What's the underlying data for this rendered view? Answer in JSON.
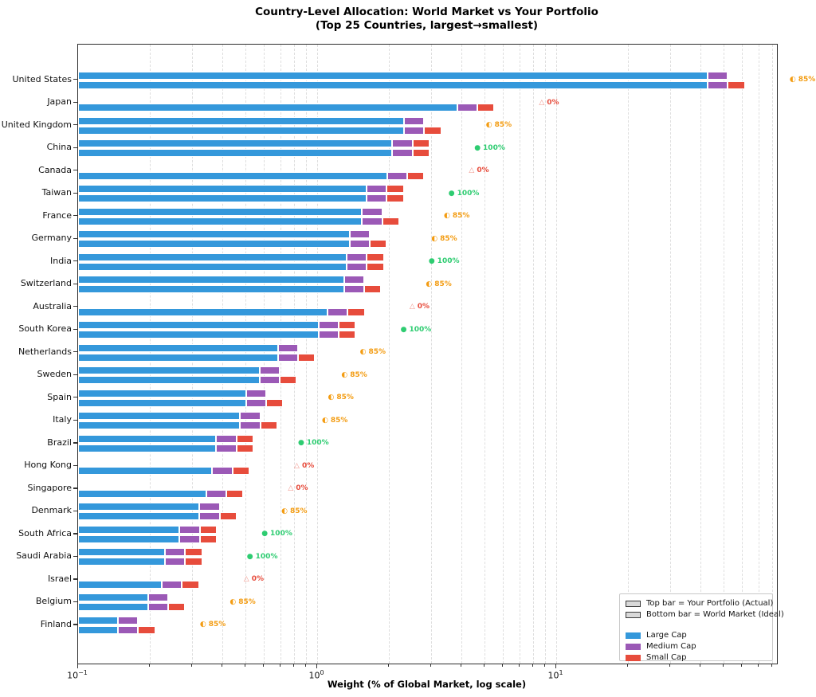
{
  "title": {
    "line1": "Country-Level Allocation: World Market vs Your Portfolio",
    "line2": "(Top 25 Countries, largest→smallest)"
  },
  "axes": {
    "xlabel": "Weight (% of Global Market, log scale)",
    "scale": "log",
    "x_min": 0.1,
    "x_max": 83.8,
    "x_ticks": [
      {
        "base": "10",
        "exp": "−1",
        "value": 0.1
      },
      {
        "base": "10",
        "exp": "0",
        "value": 1
      },
      {
        "base": "10",
        "exp": "1",
        "value": 10
      }
    ],
    "grid": "on"
  },
  "legend": {
    "position": "lower right",
    "bar_meaning": [
      "Top bar = Your Portfolio (Actual)",
      "Bottom bar = World Market (Ideal)"
    ],
    "caps": [
      {
        "label": "Large Cap",
        "color": "#3498db"
      },
      {
        "label": "Medium Cap",
        "color": "#9b59b6"
      },
      {
        "label": "Small Cap",
        "color": "#e74c3c"
      }
    ]
  },
  "chart_data": {
    "type": "bar",
    "subtype": "horizontal-paired-stacked",
    "title": "Country-Level Allocation: World Market vs Your Portfolio (Top 25 Countries, largest→smallest)",
    "xlabel": "Weight (% of Global Market, log scale)",
    "x_scale": "log",
    "xlim": [
      0.1,
      83.8
    ],
    "segments": [
      "Large Cap",
      "Medium Cap",
      "Small Cap"
    ],
    "segment_colors": [
      "#3498db",
      "#9b59b6",
      "#e74c3c"
    ],
    "cap_split_of_total": {
      "large": 0.7,
      "medium": 0.15,
      "small": 0.15
    },
    "series": [
      {
        "name": "Your Portfolio (Actual)",
        "position": "top"
      },
      {
        "name": "World Market (Ideal)",
        "position": "bottom"
      }
    ],
    "coverage_markers": {
      "85": {
        "glyph": "◐",
        "color": "#f39c12",
        "glyph_color": "#f39c12",
        "label": "85%"
      },
      "100": {
        "glyph": "●",
        "color": "#2ecc71",
        "glyph_color": "#2ecc71",
        "label": "100%"
      },
      "0": {
        "glyph": "△",
        "color": "#e74c3c",
        "glyph_color": "#f1948a",
        "label": "0%"
      }
    },
    "countries": [
      {
        "name": "United States",
        "market_weight_pct": 61.5,
        "portfolio_coverage_pct": 85
      },
      {
        "name": "Japan",
        "market_weight_pct": 5.5,
        "portfolio_coverage_pct": 0
      },
      {
        "name": "United Kingdom",
        "market_weight_pct": 3.3,
        "portfolio_coverage_pct": 85
      },
      {
        "name": "China",
        "market_weight_pct": 2.95,
        "portfolio_coverage_pct": 100
      },
      {
        "name": "Canada",
        "market_weight_pct": 2.8,
        "portfolio_coverage_pct": 0
      },
      {
        "name": "Taiwan",
        "market_weight_pct": 2.3,
        "portfolio_coverage_pct": 100
      },
      {
        "name": "France",
        "market_weight_pct": 2.2,
        "portfolio_coverage_pct": 85
      },
      {
        "name": "Germany",
        "market_weight_pct": 1.95,
        "portfolio_coverage_pct": 85
      },
      {
        "name": "India",
        "market_weight_pct": 1.9,
        "portfolio_coverage_pct": 100
      },
      {
        "name": "Switzerland",
        "market_weight_pct": 1.85,
        "portfolio_coverage_pct": 85
      },
      {
        "name": "Australia",
        "market_weight_pct": 1.58,
        "portfolio_coverage_pct": 0
      },
      {
        "name": "South Korea",
        "market_weight_pct": 1.45,
        "portfolio_coverage_pct": 100
      },
      {
        "name": "Netherlands",
        "market_weight_pct": 0.98,
        "portfolio_coverage_pct": 85
      },
      {
        "name": "Sweden",
        "market_weight_pct": 0.82,
        "portfolio_coverage_pct": 85
      },
      {
        "name": "Spain",
        "market_weight_pct": 0.72,
        "portfolio_coverage_pct": 85
      },
      {
        "name": "Italy",
        "market_weight_pct": 0.68,
        "portfolio_coverage_pct": 85
      },
      {
        "name": "Brazil",
        "market_weight_pct": 0.54,
        "portfolio_coverage_pct": 100
      },
      {
        "name": "Hong Kong",
        "market_weight_pct": 0.52,
        "portfolio_coverage_pct": 0
      },
      {
        "name": "Singapore",
        "market_weight_pct": 0.49,
        "portfolio_coverage_pct": 0
      },
      {
        "name": "Denmark",
        "market_weight_pct": 0.46,
        "portfolio_coverage_pct": 85
      },
      {
        "name": "South Africa",
        "market_weight_pct": 0.38,
        "portfolio_coverage_pct": 100
      },
      {
        "name": "Saudi Arabia",
        "market_weight_pct": 0.33,
        "portfolio_coverage_pct": 100
      },
      {
        "name": "Israel",
        "market_weight_pct": 0.32,
        "portfolio_coverage_pct": 0
      },
      {
        "name": "Belgium",
        "market_weight_pct": 0.28,
        "portfolio_coverage_pct": 85
      },
      {
        "name": "Finland",
        "market_weight_pct": 0.21,
        "portfolio_coverage_pct": 85
      }
    ]
  }
}
